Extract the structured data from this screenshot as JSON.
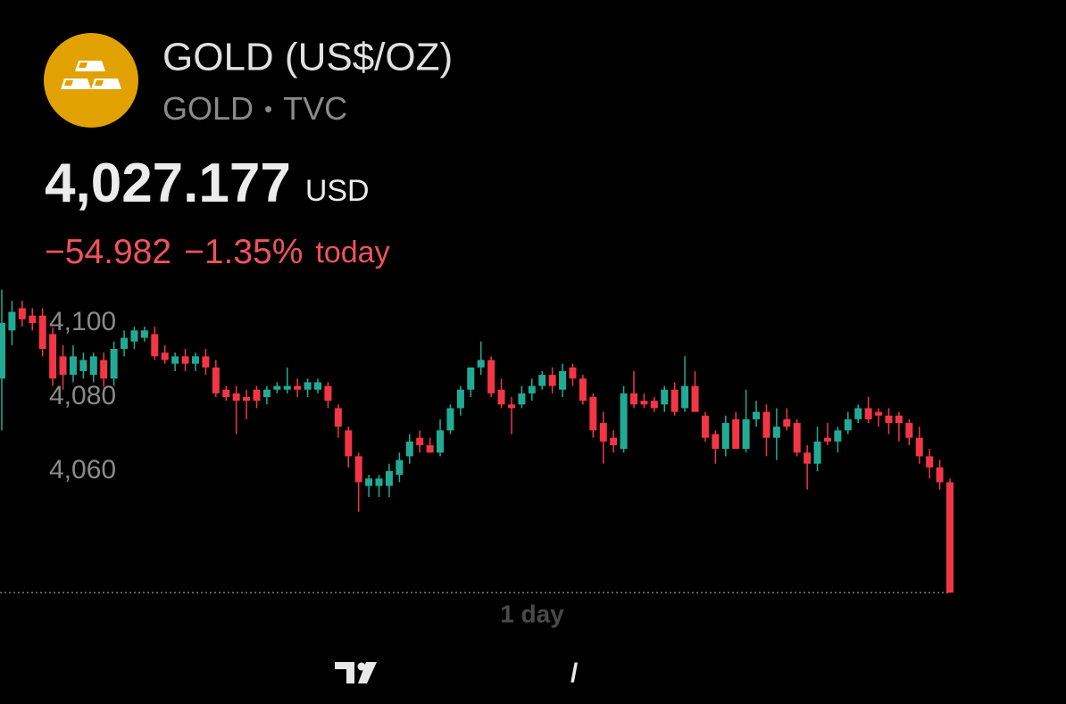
{
  "header": {
    "title": "GOLD (US$/OZ)",
    "symbol": "GOLD",
    "exchange": "TVC",
    "price": "4,027.177",
    "currency": "USD",
    "change": "−54.982",
    "change_percent": "−1.35%",
    "period": "today"
  },
  "chart_data": {
    "type": "candlestick",
    "up_color": "#22ab94",
    "down_color": "#f23645",
    "ylim": [
      4025,
      4110
    ],
    "yticks": [
      {
        "value": 4100,
        "label": "4,100"
      },
      {
        "value": 4080,
        "label": "4,080"
      },
      {
        "value": 4060,
        "label": "4,060"
      }
    ],
    "x_label": "1 day",
    "open": [
      4085,
      4098,
      4104,
      4102,
      4102,
      4097,
      4091,
      4086,
      4087,
      4086,
      4090,
      4085,
      4093,
      4095,
      4096,
      4097,
      4092,
      4089,
      4091,
      4089,
      4091,
      4088,
      4082,
      4081,
      4080,
      4082,
      4080,
      4082,
      4082,
      4083,
      4082,
      4082,
      4083,
      4077,
      4071,
      4064,
      4056,
      4056,
      4056,
      4059,
      4064,
      4069,
      4067,
      4065,
      4071,
      4077,
      4082,
      4088,
      4090,
      4082,
      4078,
      4078,
      4081,
      4083,
      4086,
      4082,
      4088,
      4085,
      4080,
      4073,
      4069,
      4066,
      4081,
      4079,
      4079,
      4078,
      4082,
      4077,
      4083,
      4075,
      4070,
      4066,
      4074,
      4066,
      4074,
      4076,
      4069,
      4074,
      4073,
      4065,
      4062,
      4069,
      4068,
      4071,
      4074,
      4077,
      4076,
      4075,
      4075,
      4073,
      4069,
      4064,
      4061,
      4057
    ],
    "high": [
      4109,
      4106,
      4106,
      4104,
      4104,
      4099,
      4094,
      4094,
      4092,
      4092,
      4092,
      4095,
      4098,
      4099,
      4099,
      4099,
      4094,
      4092,
      4093,
      4092,
      4093,
      4090,
      4083,
      4083,
      4082,
      4083,
      4083,
      4084,
      4088,
      4085,
      4085,
      4085,
      4084,
      4078,
      4072,
      4065,
      4059,
      4059,
      4062,
      4065,
      4070,
      4071,
      4069,
      4074,
      4078,
      4083,
      4088,
      4095,
      4091,
      4085,
      4080,
      4083,
      4085,
      4087,
      4088,
      4089,
      4089,
      4086,
      4081,
      4076,
      4071,
      4083,
      4087,
      4081,
      4080,
      4083,
      4084,
      4091,
      4087,
      4076,
      4071,
      4075,
      4076,
      4082,
      4079,
      4078,
      4077,
      4077,
      4074,
      4067,
      4072,
      4073,
      4072,
      4076,
      4078,
      4080,
      4077,
      4077,
      4076,
      4074,
      4072,
      4066,
      4063,
      4058
    ],
    "low": [
      4071,
      4094,
      4099,
      4098,
      4091,
      4083,
      4082,
      4084,
      4085,
      4084,
      4082,
      4083,
      4091,
      4093,
      4095,
      4090,
      4089,
      4087,
      4087,
      4087,
      4086,
      4080,
      4079,
      4070,
      4074,
      4077,
      4078,
      4081,
      4081,
      4080,
      4080,
      4081,
      4077,
      4069,
      4061,
      4049,
      4053,
      4053,
      4053,
      4057,
      4062,
      4065,
      4065,
      4064,
      4070,
      4075,
      4080,
      4086,
      4080,
      4077,
      4070,
      4077,
      4079,
      4082,
      4081,
      4080,
      4083,
      4078,
      4069,
      4062,
      4065,
      4065,
      4077,
      4077,
      4076,
      4076,
      4075,
      4076,
      4076,
      4068,
      4062,
      4064,
      4066,
      4065,
      4072,
      4064,
      4063,
      4071,
      4064,
      4055,
      4060,
      4067,
      4065,
      4070,
      4073,
      4073,
      4072,
      4070,
      4068,
      4067,
      4062,
      4058,
      4055,
      4027.177
    ],
    "close": [
      4100,
      4103,
      4101,
      4100,
      4093,
      4085,
      4086,
      4091,
      4090,
      4091,
      4085,
      4093,
      4096,
      4098,
      4098,
      4091,
      4090,
      4091,
      4089,
      4091,
      4088,
      4081,
      4080,
      4079,
      4079,
      4079,
      4082,
      4083,
      4083,
      4082,
      4084,
      4084,
      4079,
      4072,
      4064,
      4057,
      4058,
      4058,
      4060,
      4063,
      4068,
      4067,
      4065,
      4071,
      4077,
      4082,
      4088,
      4090,
      4081,
      4078,
      4077,
      4081,
      4083,
      4086,
      4083,
      4087,
      4085,
      4079,
      4071,
      4068,
      4067,
      4081,
      4078,
      4078,
      4077,
      4082,
      4076,
      4083,
      4076,
      4069,
      4066,
      4073,
      4066,
      4074,
      4076,
      4069,
      4072,
      4072,
      4065,
      4062,
      4068,
      4068,
      4071,
      4074,
      4077,
      4074,
      4075,
      4073,
      4073,
      4069,
      4064,
      4061,
      4057,
      4027.177
    ]
  }
}
